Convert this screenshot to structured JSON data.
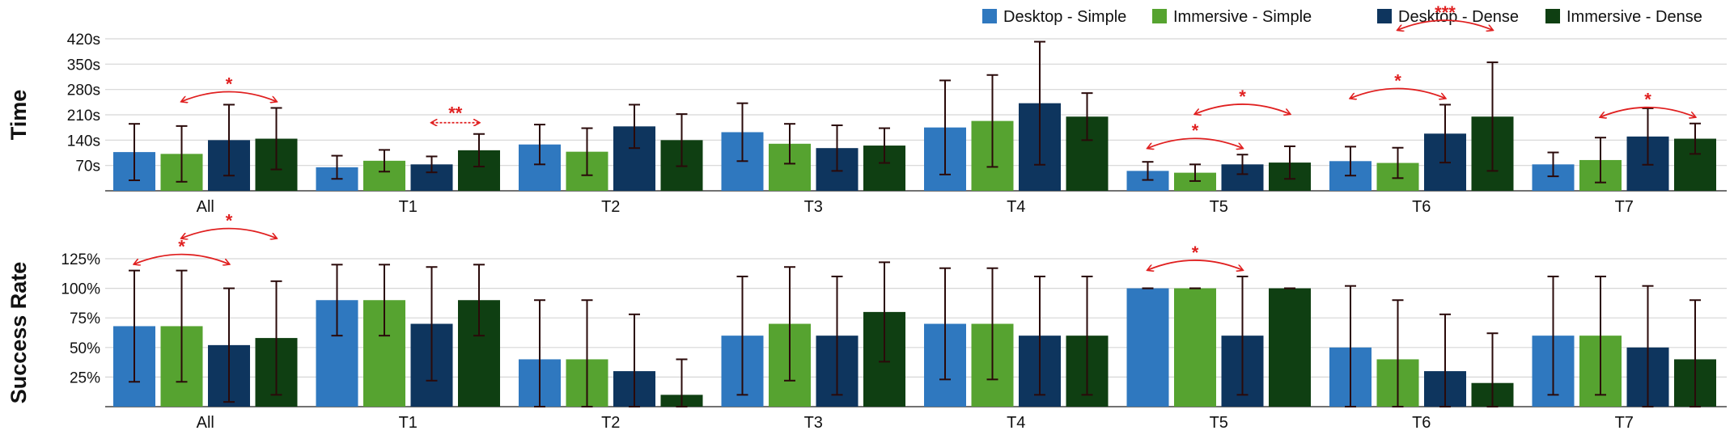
{
  "colors": {
    "Desktop - Simple": "#2f78bf",
    "Immersive - Simple": "#56a330",
    "Desktop - Dense": "#0e355e",
    "Immersive - Dense": "#0f3f12",
    "error": "#2a0a0a",
    "significance": "#e02020",
    "grid": "#d6d6d6"
  },
  "legend": [
    "Desktop - Simple",
    "Immersive - Simple",
    "Desktop - Dense",
    "Immersive - Dense"
  ],
  "chart_data": [
    {
      "type": "bar",
      "ylabel": "Time",
      "ylim": [
        0,
        420
      ],
      "yticks": [
        70,
        140,
        210,
        280,
        350,
        420
      ],
      "ytick_labels": [
        "70s",
        "140s",
        "210s",
        "280s",
        "350s",
        "420s"
      ],
      "grid": true,
      "legend_position": "top-right",
      "categories": [
        "All",
        "T1",
        "T2",
        "T3",
        "T4",
        "T5",
        "T6",
        "T7"
      ],
      "series": [
        {
          "name": "Desktop - Simple",
          "values": [
            107,
            65,
            128,
            162,
            175,
            55,
            82,
            73
          ],
          "error": [
            78,
            32,
            55,
            80,
            130,
            25,
            40,
            33
          ]
        },
        {
          "name": "Immersive - Simple",
          "values": [
            102,
            83,
            108,
            130,
            193,
            50,
            77,
            85
          ],
          "error": [
            77,
            30,
            65,
            55,
            127,
            23,
            42,
            62
          ]
        },
        {
          "name": "Desktop - Dense",
          "values": [
            140,
            73,
            178,
            118,
            242,
            73,
            158,
            150
          ],
          "error": [
            98,
            22,
            60,
            63,
            170,
            27,
            80,
            78
          ]
        },
        {
          "name": "Immersive - Dense",
          "values": [
            144,
            112,
            140,
            125,
            205,
            78,
            205,
            144
          ],
          "error": [
            85,
            45,
            72,
            48,
            65,
            45,
            150,
            42
          ]
        }
      ],
      "significance": [
        {
          "category": "All",
          "from": "Immersive - Simple",
          "to": "Immersive - Dense",
          "label": "*"
        },
        {
          "category": "T1",
          "from": "Desktop - Dense",
          "to": "Immersive - Dense",
          "label": "**"
        },
        {
          "category": "T5",
          "from": "Desktop - Simple",
          "to": "Desktop - Dense",
          "label": "*"
        },
        {
          "category": "T5",
          "from": "Immersive - Simple",
          "to": "Immersive - Dense",
          "label": "*"
        },
        {
          "category": "T6",
          "from": "Desktop - Simple",
          "to": "Desktop - Dense",
          "label": "*"
        },
        {
          "category": "T6",
          "from": "Immersive - Simple",
          "to": "Immersive - Dense",
          "label": "***"
        },
        {
          "category": "T7",
          "from": "Immersive - Simple",
          "to": "Immersive - Dense",
          "label": "*"
        }
      ]
    },
    {
      "type": "bar",
      "ylabel": "Success Rate",
      "ylim": [
        0,
        125
      ],
      "yticks": [
        25,
        50,
        75,
        100,
        125
      ],
      "ytick_labels": [
        "25%",
        "50%",
        "75%",
        "100%",
        "125%"
      ],
      "grid": true,
      "categories": [
        "All",
        "T1",
        "T2",
        "T3",
        "T4",
        "T5",
        "T6",
        "T7"
      ],
      "series": [
        {
          "name": "Desktop - Simple",
          "values": [
            68,
            90,
            40,
            60,
            70,
            100,
            50,
            60
          ],
          "error": [
            47,
            30,
            50,
            50,
            47,
            0,
            52,
            50
          ]
        },
        {
          "name": "Immersive - Simple",
          "values": [
            68,
            90,
            40,
            70,
            70,
            100,
            40,
            60
          ],
          "error": [
            47,
            30,
            50,
            48,
            47,
            0,
            50,
            50
          ]
        },
        {
          "name": "Desktop - Dense",
          "values": [
            52,
            70,
            30,
            60,
            60,
            60,
            30,
            50
          ],
          "error": [
            48,
            48,
            48,
            50,
            50,
            50,
            48,
            52
          ]
        },
        {
          "name": "Immersive - Dense",
          "values": [
            58,
            90,
            10,
            80,
            60,
            100,
            20,
            40
          ],
          "error": [
            48,
            30,
            30,
            42,
            50,
            0,
            42,
            50
          ]
        }
      ],
      "significance": [
        {
          "category": "All",
          "from": "Desktop - Simple",
          "to": "Desktop - Dense",
          "label": "*"
        },
        {
          "category": "All",
          "from": "Immersive - Simple",
          "to": "Immersive - Dense",
          "label": "*"
        },
        {
          "category": "T5",
          "from": "Desktop - Simple",
          "to": "Desktop - Dense",
          "label": "*"
        }
      ]
    }
  ]
}
